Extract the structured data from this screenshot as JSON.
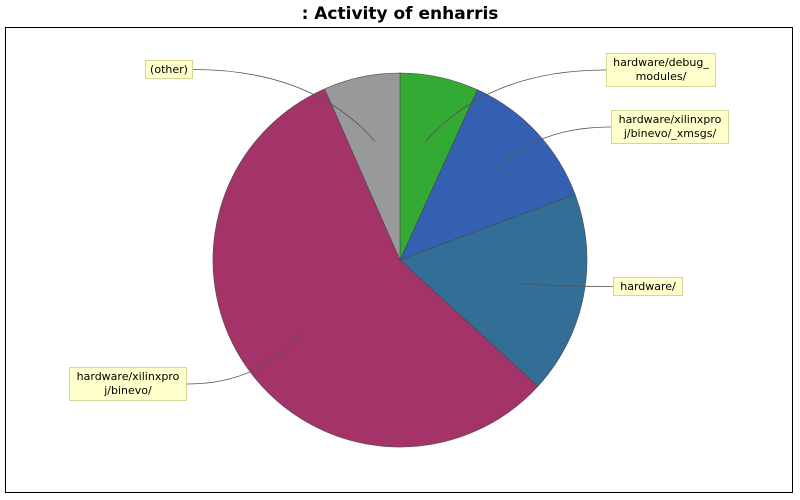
{
  "chart_data": {
    "type": "pie",
    "title": ": Activity of enharris",
    "slices": [
      {
        "label": "hardware/debug_\nmodules/",
        "value": 6.8,
        "color": "#33aa33"
      },
      {
        "label": "hardware/xilinxpro\nj/binevo/_xmsgs/",
        "value": 12.5,
        "color": "#3360b0"
      },
      {
        "label": "hardware/",
        "value": 17.5,
        "color": "#336e96"
      },
      {
        "label": "hardware/xilinxpro\nj/binevo/",
        "value": 56.6,
        "color": "#a4336a"
      },
      {
        "label": "(other)",
        "value": 6.6,
        "color": "#999999"
      }
    ],
    "legend": "none",
    "start_angle": "12 o'clock",
    "direction": "clockwise"
  }
}
